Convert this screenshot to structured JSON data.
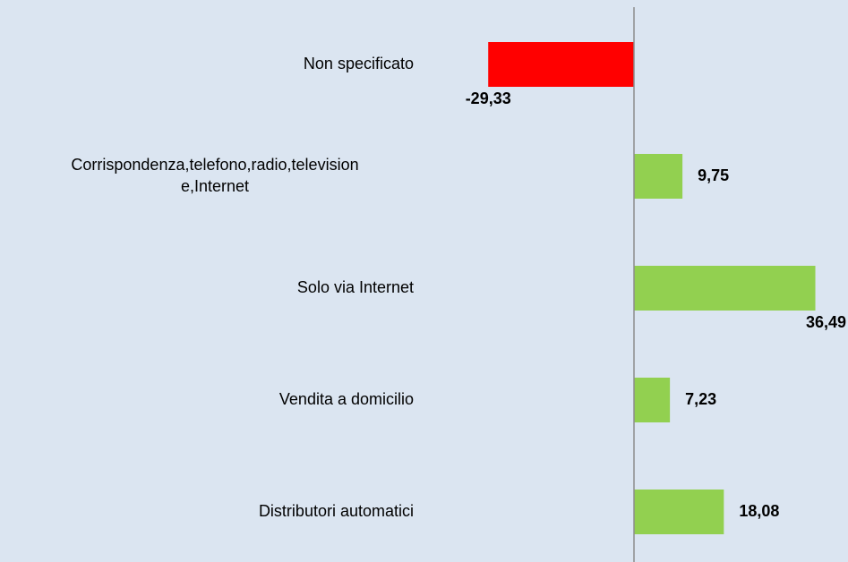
{
  "chart_data": {
    "type": "hbar",
    "categories": [
      "Non specificato",
      "Corrispondenza,telefono,radio,televisione,Internet",
      "Solo via Internet",
      "Vendita a domicilio",
      "Distributori automatici"
    ],
    "values": [
      -29.33,
      9.75,
      36.49,
      7.23,
      18.08
    ],
    "value_labels": [
      "-29,33",
      "9,75",
      "36,49",
      "7,23",
      "18,08"
    ],
    "colors": [
      "#ff0000",
      "#92d050",
      "#92d050",
      "#92d050",
      "#92d050"
    ],
    "xlim": [
      -40,
      40
    ]
  }
}
